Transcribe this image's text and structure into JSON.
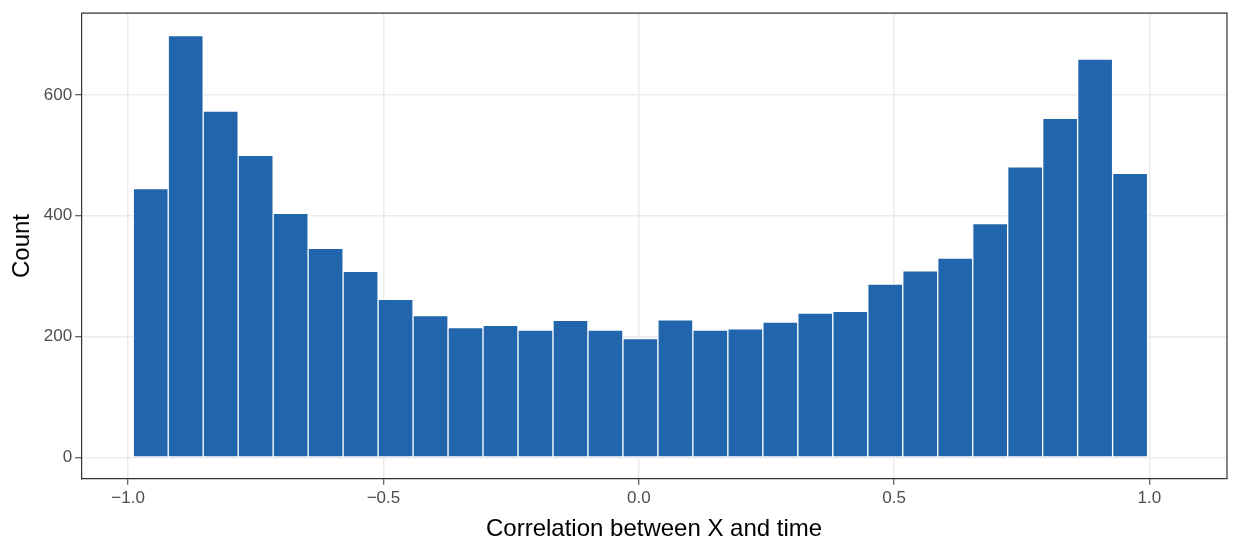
{
  "chart_data": {
    "type": "histogram",
    "xlabel": "Correlation between X and time",
    "ylabel": "Count",
    "bins": [
      -0.99,
      -0.9215,
      -0.853,
      -0.7845,
      -0.716,
      -0.6475,
      -0.579,
      -0.5105,
      -0.442,
      -0.3735,
      -0.305,
      -0.2365,
      -0.168,
      -0.0995,
      -0.031,
      0.0375,
      0.106,
      0.1745,
      0.243,
      0.3115,
      0.38,
      0.4485,
      0.517,
      0.5855,
      0.654,
      0.7225,
      0.791,
      0.8595,
      0.928,
      0.9965,
      1.065
    ],
    "values": [
      445,
      698,
      573,
      500,
      404,
      346,
      308,
      262,
      235,
      215,
      219,
      211,
      227,
      211,
      197,
      228,
      211,
      213,
      224,
      239,
      242,
      287,
      309,
      330,
      387,
      481,
      561,
      659,
      470,
      0
    ],
    "color": "#2166ac",
    "xlim": [
      -1.092,
      1.152
    ],
    "ylim": [
      -35,
      735
    ],
    "xticks": [
      {
        "value": -1,
        "label": "−1.0"
      },
      {
        "value": -0.5,
        "label": "−0.5"
      },
      {
        "value": 0,
        "label": "0.0"
      },
      {
        "value": 0.5,
        "label": "0.5"
      },
      {
        "value": 1,
        "label": "1.0"
      }
    ],
    "yticks": [
      0,
      200,
      400,
      600
    ],
    "grid": true
  }
}
